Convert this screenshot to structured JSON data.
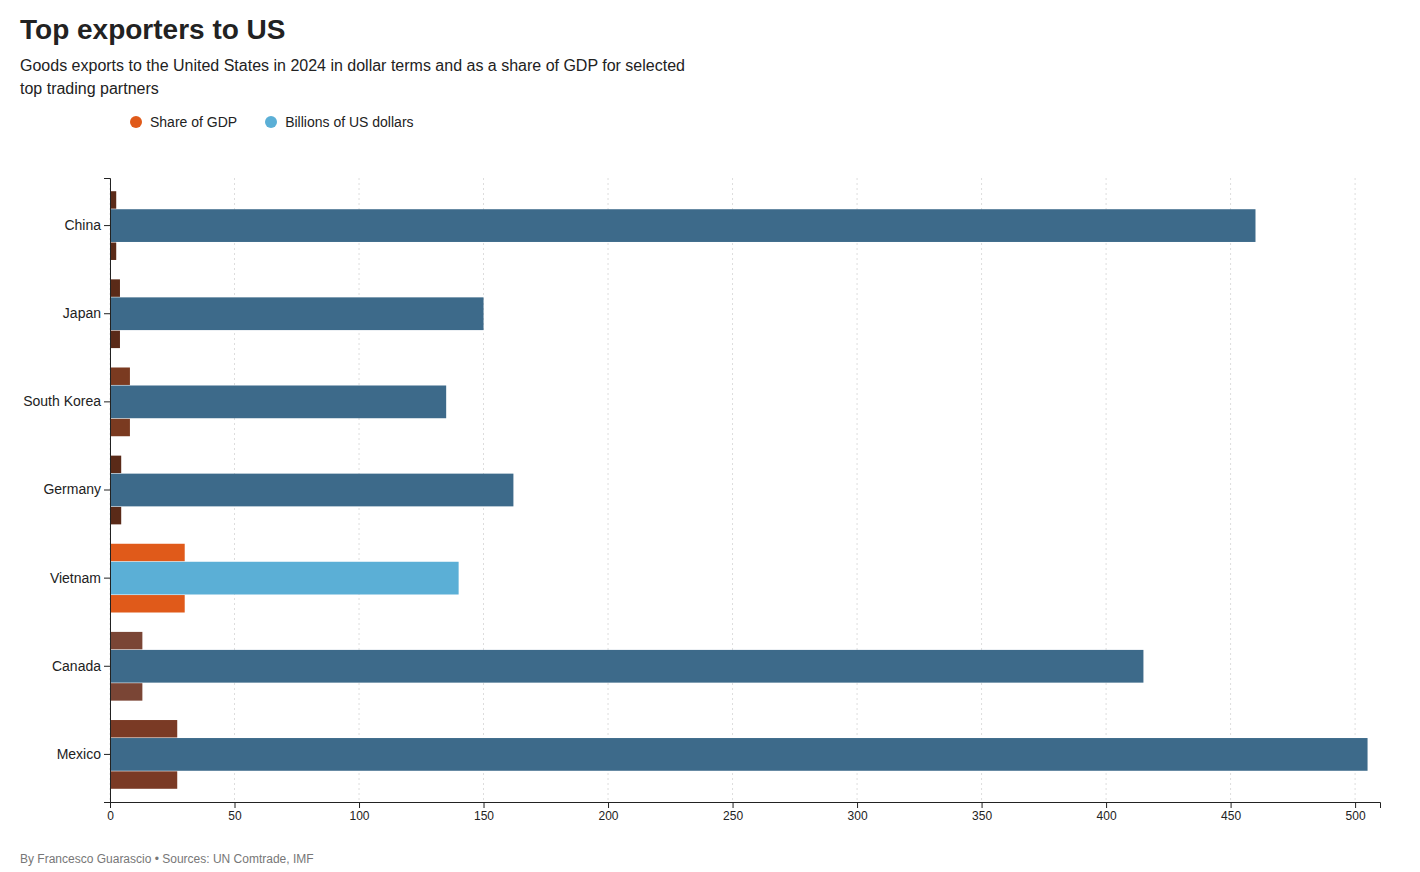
{
  "chart_data": {
    "type": "bar",
    "orientation": "horizontal",
    "title": "Top exporters to US",
    "subtitle": "Goods exports to the United States in 2024 in dollar terms and as a share of GDP for selected\ntop trading partners",
    "annotations": [
      "By Francesco Guarascio • Sources: UN Comtrade, IMF"
    ],
    "categories": [
      "China",
      "Japan",
      "South Korea",
      "Germany",
      "Vietnam",
      "Canada",
      "Mexico"
    ],
    "series": [
      {
        "name": "Share of GDP",
        "color": "#e05a1a",
        "colors": [
          "#5a2a18",
          "#5a2a18",
          "#7a3a20",
          "#5a2a18",
          "#e05a1a",
          "#7a4535",
          "#7a3a25"
        ],
        "values": [
          2.5,
          4.0,
          8.0,
          4.5,
          30.0,
          13.0,
          27.0
        ]
      },
      {
        "name": "Billions of US dollars",
        "color": "#5bafd6",
        "colors": [
          "#3d6a8a",
          "#3d6a8a",
          "#3d6a8a",
          "#3d6a8a",
          "#5bafd6",
          "#3d6a8a",
          "#3d6a8a"
        ],
        "values": [
          460,
          150,
          135,
          162,
          140,
          415,
          505
        ]
      }
    ],
    "xlim": [
      0,
      510
    ],
    "xticks": [
      0,
      50,
      100,
      150,
      200,
      250,
      300,
      350,
      400,
      450,
      500
    ],
    "grid": true,
    "legend": "top"
  }
}
